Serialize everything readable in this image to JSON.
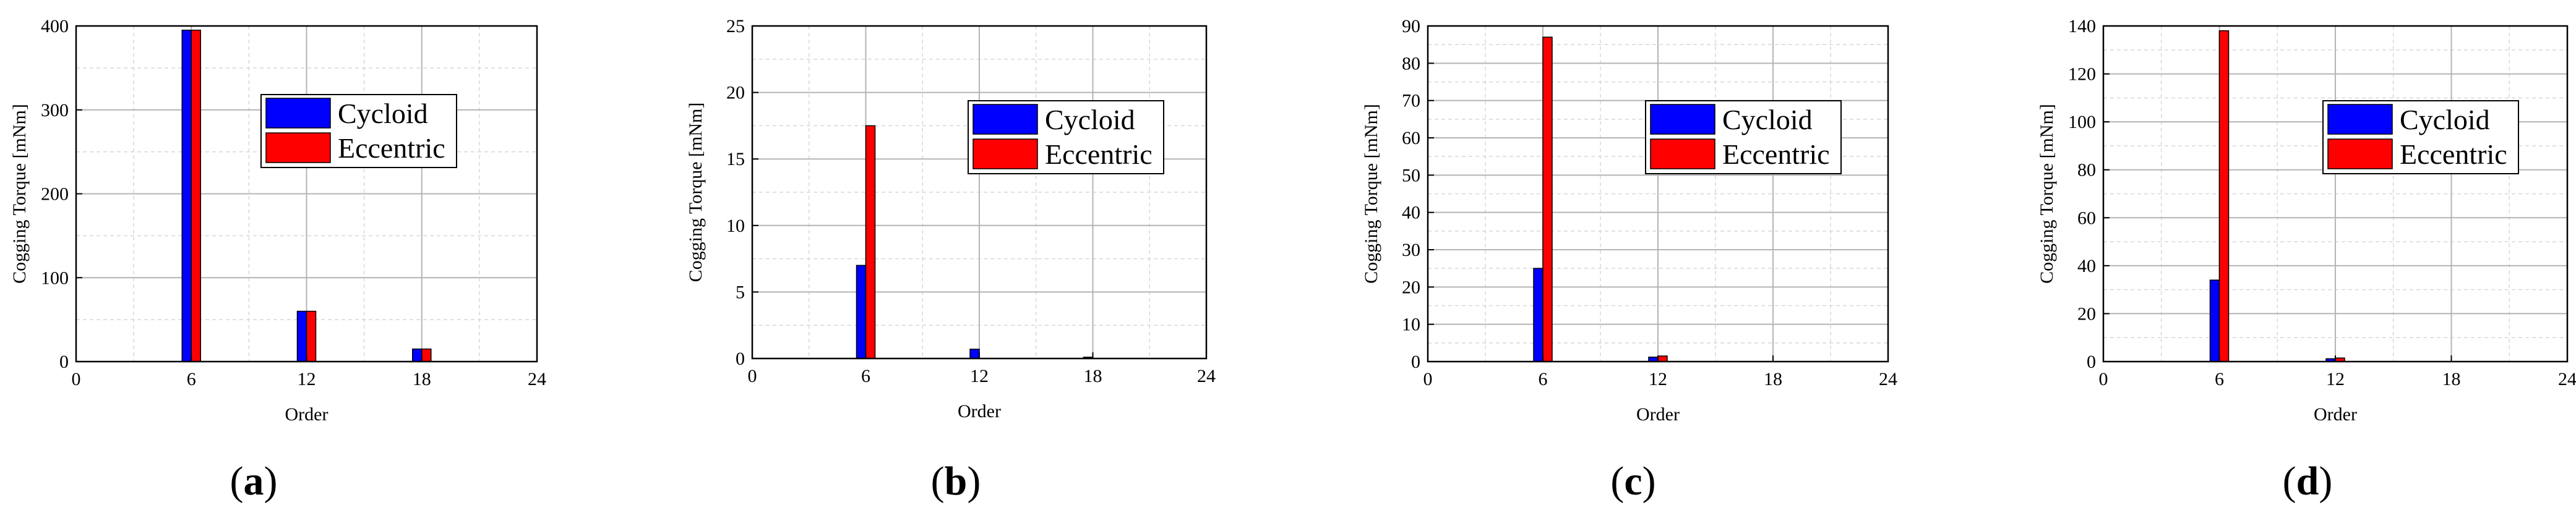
{
  "chart_data": [
    {
      "type": "bar",
      "panel_label": {
        "open": "(",
        "letter": "a",
        "close": ")"
      },
      "xlabel": "Order",
      "ylabel": "Cogging Torque [mNm]",
      "xlim": [
        0,
        24
      ],
      "ylim": [
        0,
        400
      ],
      "xticks": [
        0,
        6,
        12,
        18,
        24
      ],
      "yticks": [
        0,
        100,
        200,
        300,
        400
      ],
      "grid": true,
      "legend_position": "upper-right",
      "series": [
        {
          "name": "Cycloid",
          "color": "#0000ff",
          "x": [
            6,
            12,
            18
          ],
          "values": [
            395,
            60,
            15
          ]
        },
        {
          "name": "Eccentric",
          "color": "#ff0000",
          "x": [
            6,
            12,
            18
          ],
          "values": [
            395,
            60,
            15
          ]
        }
      ]
    },
    {
      "type": "bar",
      "panel_label": {
        "open": "(",
        "letter": "b",
        "close": ")"
      },
      "xlabel": "Order",
      "ylabel": "Cogging Torque [mNm]",
      "xlim": [
        0,
        24
      ],
      "ylim": [
        0,
        25
      ],
      "xticks": [
        0,
        6,
        12,
        18,
        24
      ],
      "yticks": [
        0,
        5,
        10,
        15,
        20,
        25
      ],
      "grid": true,
      "legend_position": "upper-right",
      "series": [
        {
          "name": "Cycloid",
          "color": "#0000ff",
          "x": [
            6,
            12,
            18
          ],
          "values": [
            7,
            0.7,
            0.1
          ]
        },
        {
          "name": "Eccentric",
          "color": "#ff0000",
          "x": [
            6,
            12,
            18
          ],
          "values": [
            17.5,
            0,
            0
          ]
        }
      ]
    },
    {
      "type": "bar",
      "panel_label": {
        "open": "(",
        "letter": "c",
        "close": ")"
      },
      "xlabel": "Order",
      "ylabel": "Cogging Torque [mNm]",
      "xlim": [
        0,
        24
      ],
      "ylim": [
        0,
        90
      ],
      "xticks": [
        0,
        6,
        12,
        18,
        24
      ],
      "yticks": [
        0,
        10,
        20,
        30,
        40,
        50,
        60,
        70,
        80,
        90
      ],
      "grid": true,
      "legend_position": "upper-right",
      "series": [
        {
          "name": "Cycloid",
          "color": "#0000ff",
          "x": [
            6,
            12,
            18
          ],
          "values": [
            25,
            1.2,
            0
          ]
        },
        {
          "name": "Eccentric",
          "color": "#ff0000",
          "x": [
            6,
            12,
            18
          ],
          "values": [
            87,
            1.5,
            0
          ]
        }
      ]
    },
    {
      "type": "bar",
      "panel_label": {
        "open": "(",
        "letter": "d",
        "close": ")"
      },
      "xlabel": "Order",
      "ylabel": "Cogging Torque [mNm]",
      "xlim": [
        0,
        24
      ],
      "ylim": [
        0,
        140
      ],
      "xticks": [
        0,
        6,
        12,
        18,
        24
      ],
      "yticks": [
        0,
        20,
        40,
        60,
        80,
        100,
        120,
        140
      ],
      "grid": true,
      "legend_position": "upper-right",
      "series": [
        {
          "name": "Cycloid",
          "color": "#0000ff",
          "x": [
            6,
            12,
            18
          ],
          "values": [
            34,
            1.2,
            0
          ]
        },
        {
          "name": "Eccentric",
          "color": "#ff0000",
          "x": [
            6,
            12,
            18
          ],
          "values": [
            138,
            1.5,
            0
          ]
        }
      ]
    }
  ]
}
